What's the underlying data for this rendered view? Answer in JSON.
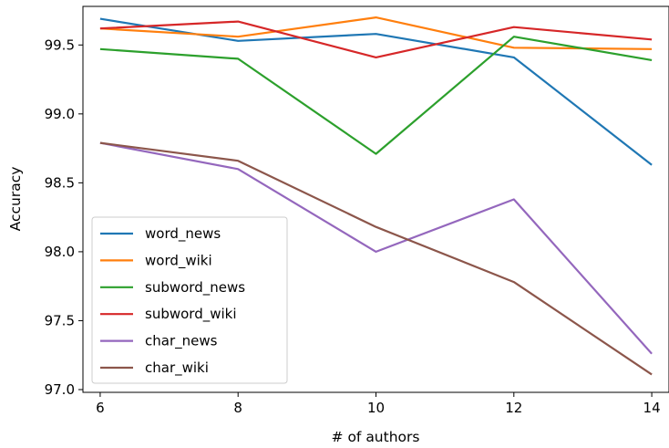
{
  "chart_data": {
    "type": "line",
    "title": "",
    "xlabel": "# of authors",
    "ylabel": "Accuracy",
    "x": [
      6,
      8,
      10,
      12,
      14
    ],
    "xlim": [
      5.75,
      14.25
    ],
    "ylim": [
      96.98,
      99.78
    ],
    "xticks": [
      6,
      8,
      10,
      12,
      14
    ],
    "xtick_labels": [
      "6",
      "8",
      "10",
      "12",
      "14"
    ],
    "yticks": [
      97.0,
      97.5,
      98.0,
      98.5,
      99.0,
      99.5
    ],
    "ytick_labels": [
      "97.0",
      "97.5",
      "98.0",
      "98.5",
      "99.0",
      "99.5"
    ],
    "grid": false,
    "legend_position": "center-left",
    "series": [
      {
        "name": "word_news",
        "color": "#1f77b4",
        "values": [
          99.69,
          99.53,
          99.58,
          99.41,
          98.63
        ]
      },
      {
        "name": "word_wiki",
        "color": "#ff7f0e",
        "values": [
          99.62,
          99.56,
          99.7,
          99.48,
          99.47
        ]
      },
      {
        "name": "subword_news",
        "color": "#2ca02c",
        "values": [
          99.47,
          99.4,
          98.71,
          99.56,
          99.39
        ]
      },
      {
        "name": "subword_wiki",
        "color": "#d62728",
        "values": [
          99.62,
          99.67,
          99.41,
          99.63,
          99.54
        ]
      },
      {
        "name": "char_news",
        "color": "#9467bd",
        "values": [
          98.79,
          98.6,
          98.0,
          98.38,
          97.26
        ]
      },
      {
        "name": "char_wiki",
        "color": "#8c564b",
        "values": [
          98.79,
          98.66,
          98.18,
          97.78,
          97.11
        ]
      }
    ]
  }
}
